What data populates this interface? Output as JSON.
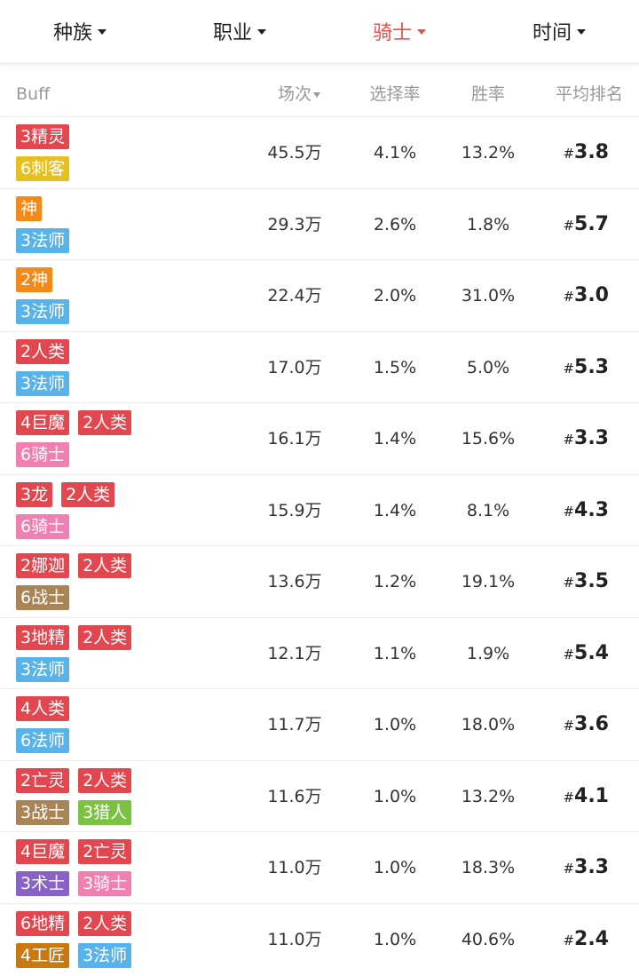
{
  "tabs": [
    {
      "label": "种族",
      "active": false
    },
    {
      "label": "职业",
      "active": false
    },
    {
      "label": "骑士",
      "active": true
    },
    {
      "label": "时间",
      "active": false
    }
  ],
  "table": {
    "headers": [
      "Buff",
      "场次",
      "选择率",
      "胜率",
      "平均排名"
    ],
    "sorted_column": 1,
    "rows": [
      {
        "buffs": [
          [
            {
              "text": "3精灵",
              "color": "#e2474f"
            }
          ],
          [
            {
              "text": "6刺客",
              "color": "#e5c020"
            }
          ]
        ],
        "games": "45.5万",
        "pick_rate": "4.1%",
        "win_rate": "13.2%",
        "rank": {
          "prefix": "#",
          "value": "3.8"
        }
      },
      {
        "buffs": [
          [
            {
              "text": "神",
              "color": "#f28a1a"
            }
          ],
          [
            {
              "text": "3法师",
              "color": "#58b3ea"
            }
          ]
        ],
        "games": "29.3万",
        "pick_rate": "2.6%",
        "win_rate": "1.8%",
        "rank": {
          "prefix": "#",
          "value": "5.7"
        }
      },
      {
        "buffs": [
          [
            {
              "text": "2神",
              "color": "#f28a1a"
            }
          ],
          [
            {
              "text": "3法师",
              "color": "#58b3ea"
            }
          ]
        ],
        "games": "22.4万",
        "pick_rate": "2.0%",
        "win_rate": "31.0%",
        "rank": {
          "prefix": "#",
          "value": "3.0"
        }
      },
      {
        "buffs": [
          [
            {
              "text": "2人类",
              "color": "#e2474f"
            }
          ],
          [
            {
              "text": "3法师",
              "color": "#58b3ea"
            }
          ]
        ],
        "games": "17.0万",
        "pick_rate": "1.5%",
        "win_rate": "5.0%",
        "rank": {
          "prefix": "#",
          "value": "5.3"
        }
      },
      {
        "buffs": [
          [
            {
              "text": "4巨魔",
              "color": "#e2474f"
            },
            {
              "text": "2人类",
              "color": "#e2474f"
            }
          ],
          [
            {
              "text": "6骑士",
              "color": "#ef80b1"
            }
          ]
        ],
        "games": "16.1万",
        "pick_rate": "1.4%",
        "win_rate": "15.6%",
        "rank": {
          "prefix": "#",
          "value": "3.3"
        }
      },
      {
        "buffs": [
          [
            {
              "text": "3龙",
              "color": "#e2474f"
            },
            {
              "text": "2人类",
              "color": "#e2474f"
            }
          ],
          [
            {
              "text": "6骑士",
              "color": "#ef80b1"
            }
          ]
        ],
        "games": "15.9万",
        "pick_rate": "1.4%",
        "win_rate": "8.1%",
        "rank": {
          "prefix": "#",
          "value": "4.3"
        }
      },
      {
        "buffs": [
          [
            {
              "text": "2娜迦",
              "color": "#e2474f"
            },
            {
              "text": "2人类",
              "color": "#e2474f"
            }
          ],
          [
            {
              "text": "6战士",
              "color": "#a98456"
            }
          ]
        ],
        "games": "13.6万",
        "pick_rate": "1.2%",
        "win_rate": "19.1%",
        "rank": {
          "prefix": "#",
          "value": "3.5"
        }
      },
      {
        "buffs": [
          [
            {
              "text": "3地精",
              "color": "#e2474f"
            },
            {
              "text": "2人类",
              "color": "#e2474f"
            }
          ],
          [
            {
              "text": "3法师",
              "color": "#58b3ea"
            }
          ]
        ],
        "games": "12.1万",
        "pick_rate": "1.1%",
        "win_rate": "1.9%",
        "rank": {
          "prefix": "#",
          "value": "5.4"
        }
      },
      {
        "buffs": [
          [
            {
              "text": "4人类",
              "color": "#e2474f"
            }
          ],
          [
            {
              "text": "6法师",
              "color": "#58b3ea"
            }
          ]
        ],
        "games": "11.7万",
        "pick_rate": "1.0%",
        "win_rate": "18.0%",
        "rank": {
          "prefix": "#",
          "value": "3.6"
        }
      },
      {
        "buffs": [
          [
            {
              "text": "2亡灵",
              "color": "#e2474f"
            },
            {
              "text": "2人类",
              "color": "#e2474f"
            }
          ],
          [
            {
              "text": "3战士",
              "color": "#a98456"
            },
            {
              "text": "3猎人",
              "color": "#7bc242"
            }
          ]
        ],
        "games": "11.6万",
        "pick_rate": "1.0%",
        "win_rate": "13.2%",
        "rank": {
          "prefix": "#",
          "value": "4.1"
        }
      },
      {
        "buffs": [
          [
            {
              "text": "4巨魔",
              "color": "#e2474f"
            },
            {
              "text": "2亡灵",
              "color": "#e2474f"
            }
          ],
          [
            {
              "text": "3术士",
              "color": "#8862c6"
            },
            {
              "text": "3骑士",
              "color": "#ef80b1"
            }
          ]
        ],
        "games": "11.0万",
        "pick_rate": "1.0%",
        "win_rate": "18.3%",
        "rank": {
          "prefix": "#",
          "value": "3.3"
        }
      },
      {
        "buffs": [
          [
            {
              "text": "6地精",
              "color": "#e2474f"
            },
            {
              "text": "2人类",
              "color": "#e2474f"
            }
          ],
          [
            {
              "text": "4工匠",
              "color": "#c87914"
            },
            {
              "text": "3法师",
              "color": "#58b3ea"
            }
          ]
        ],
        "games": "11.0万",
        "pick_rate": "1.0%",
        "win_rate": "40.6%",
        "rank": {
          "prefix": "#",
          "value": "2.4"
        }
      }
    ]
  }
}
